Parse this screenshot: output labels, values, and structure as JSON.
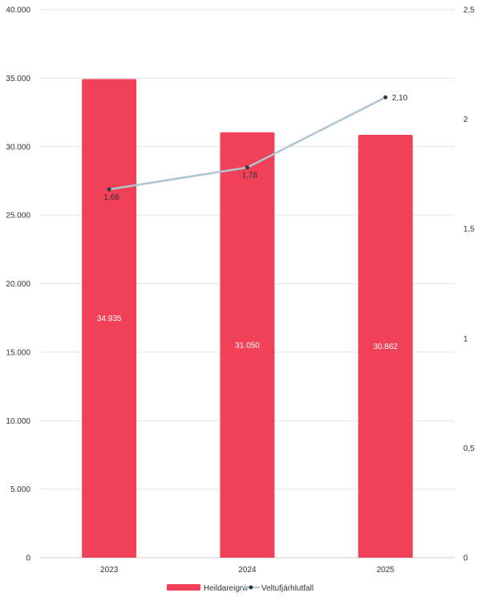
{
  "chart_data": {
    "type": "bar",
    "categories": [
      "2023",
      "2024",
      "2025"
    ],
    "series": [
      {
        "name": "Heildareignir",
        "type": "bar",
        "axis": "left",
        "color": "#f04158",
        "values": [
          34935,
          31050,
          30862
        ],
        "value_labels": [
          "34.935",
          "31.050",
          "30.862"
        ]
      },
      {
        "name": "Veltufjárhlutfall",
        "type": "line",
        "axis": "right",
        "color": "#aec6cf",
        "marker_color": "#2f3b40",
        "values": [
          1.68,
          1.78,
          2.1
        ],
        "value_labels": [
          "1,68",
          "1,78",
          "2,10"
        ]
      }
    ],
    "y_left": {
      "ylim": [
        0,
        40000
      ],
      "ticks": [
        0,
        5000,
        10000,
        15000,
        20000,
        25000,
        30000,
        35000,
        40000
      ],
      "tick_labels": [
        "0",
        "5.000",
        "10.000",
        "15.000",
        "20.000",
        "25.000",
        "30.000",
        "35.000",
        "40.000"
      ]
    },
    "y_right": {
      "ylim": [
        0,
        2.5
      ],
      "ticks": [
        0,
        0.5,
        1,
        1.5,
        2,
        2.5
      ],
      "tick_labels": [
        "0",
        "0,5",
        "1",
        "1,5",
        "2",
        "2,5"
      ]
    },
    "grid": true,
    "legend_position": "bottom"
  }
}
